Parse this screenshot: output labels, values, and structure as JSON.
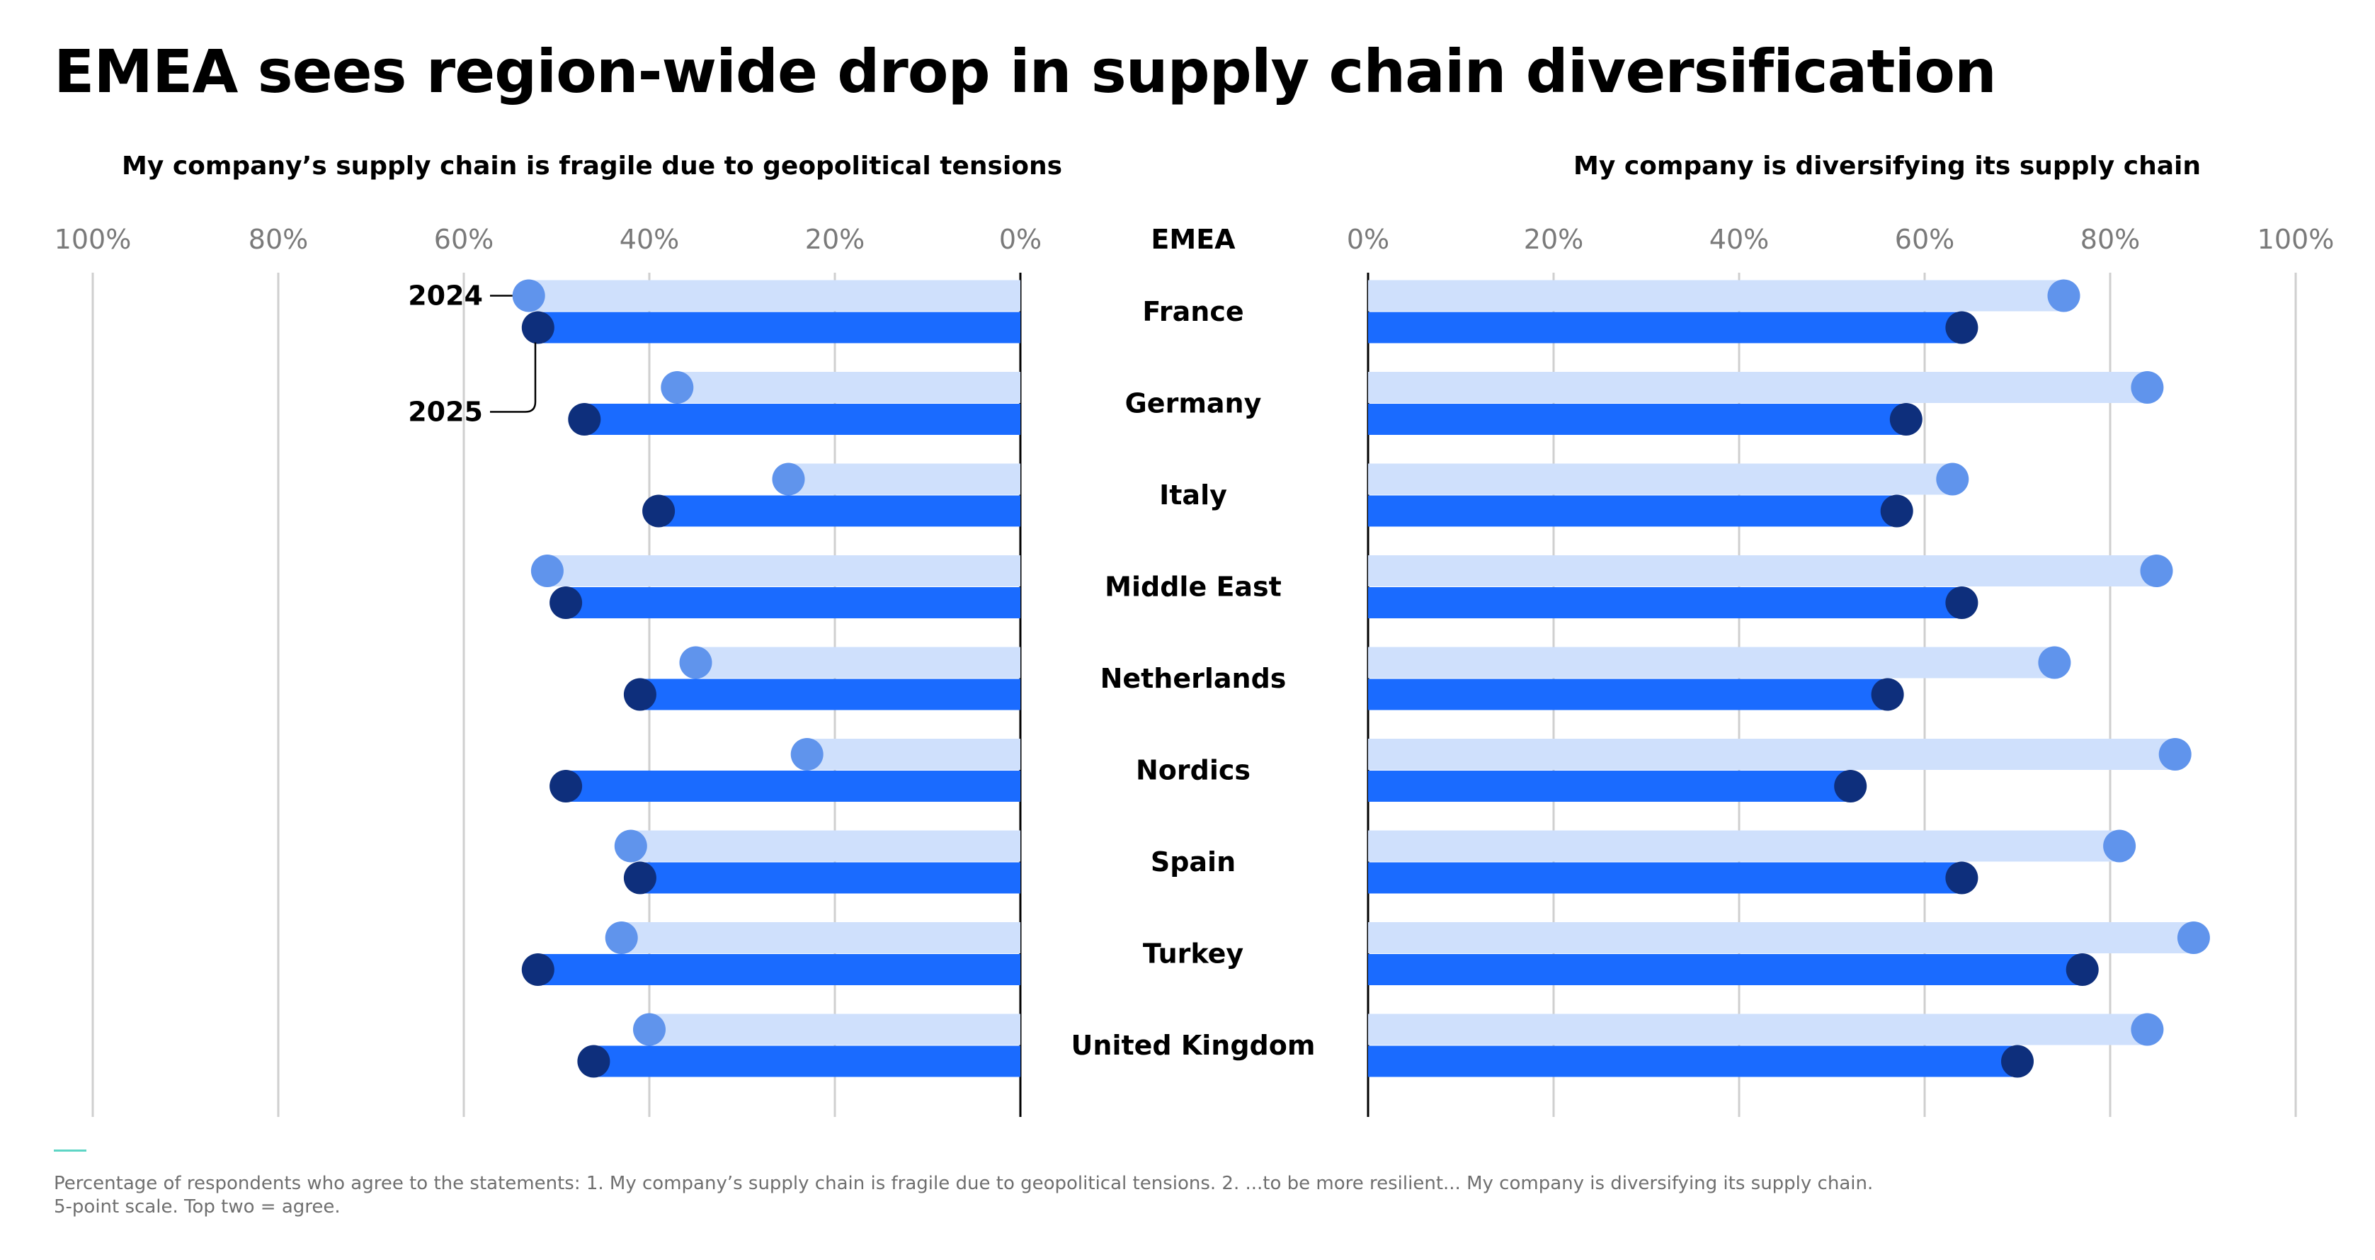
{
  "title": "EMEA sees region-wide drop in supply chain diversification",
  "subtitle_left": "My company’s supply chain is fragile due to geopolitical tensions",
  "subtitle_right": "My company is diversifying its supply chain",
  "center_header": "EMEA",
  "footnote_line1": "Percentage of respondents who agree to the statements: 1. My company’s supply chain is fragile due to geopolitical tensions. 2. ...to be more resilient... My company is diversifying its supply chain.",
  "footnote_line2": "5-point scale. Top two = agree.",
  "colors": {
    "bar_2024": "#cfe0fc",
    "bar_2025": "#1a6bff",
    "dot_2024": "#6094ec",
    "dot_2025": "#0e2f7c",
    "grid": "#cfcfcf",
    "tick_text": "#7a7a7a",
    "accent_line": "#5ed5c5"
  },
  "chart_data": [
    {
      "type": "bar",
      "title": "My company’s supply chain is fragile due to geopolitical tensions",
      "direction": "leftward",
      "xlim": [
        0,
        100
      ],
      "x_ticks": [
        "100%",
        "80%",
        "60%",
        "40%",
        "20%",
        "0%"
      ],
      "grid": true,
      "categories": [
        "France",
        "Germany",
        "Italy",
        "Middle East",
        "Netherlands",
        "Nordics",
        "Spain",
        "Turkey",
        "United Kingdom"
      ],
      "series": [
        {
          "name": "2024",
          "values": [
            53,
            37,
            25,
            51,
            35,
            23,
            42,
            43,
            40
          ]
        },
        {
          "name": "2025",
          "values": [
            52,
            47,
            39,
            49,
            41,
            49,
            41,
            52,
            46
          ]
        }
      ],
      "legend": "annotation-left-of-first-row"
    },
    {
      "type": "bar",
      "title": "My company is diversifying its supply chain",
      "direction": "rightward",
      "xlim": [
        0,
        100
      ],
      "x_ticks": [
        "0%",
        "20%",
        "40%",
        "60%",
        "80%",
        "100%"
      ],
      "grid": true,
      "categories": [
        "France",
        "Germany",
        "Italy",
        "Middle East",
        "Netherlands",
        "Nordics",
        "Spain",
        "Turkey",
        "United Kingdom"
      ],
      "series": [
        {
          "name": "2024",
          "values": [
            75,
            84,
            63,
            85,
            74,
            87,
            81,
            89,
            84
          ]
        },
        {
          "name": "2025",
          "values": [
            64,
            58,
            57,
            64,
            56,
            52,
            64,
            77,
            70
          ]
        }
      ]
    }
  ]
}
